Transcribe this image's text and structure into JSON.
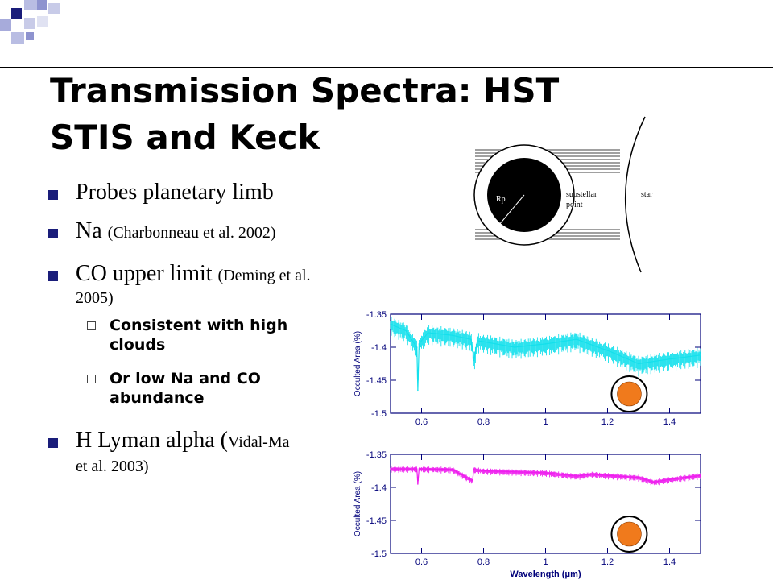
{
  "slide": {
    "title_line1": "Transmission Spectra: HST",
    "title_line2": "STIS and Keck",
    "bullets": [
      {
        "text": "Probes planetary limb",
        "cite": ""
      },
      {
        "text": "Na ",
        "cite": "(Charbonneau et al. 2002)"
      },
      {
        "text": "CO upper limit ",
        "cite": "(Deming et al.",
        "cite2": "2005)"
      },
      {
        "text": "H Lyman alpha (",
        "cite": "Vidal-Ma",
        "cite2": "et al. 2003)"
      }
    ],
    "sub_bullets": [
      {
        "line1": "Consistent with high",
        "line2": "clouds"
      },
      {
        "line1": "Or low Na and CO",
        "line2": "abundance"
      }
    ]
  },
  "diagram": {
    "r_label": "Rp",
    "substellar_label_1": "substellar",
    "substellar_label_2": "point",
    "star_label": "star"
  },
  "chart_data": [
    {
      "type": "line",
      "xlabel": "",
      "ylabel": "Occulted Area (%)",
      "xlim": [
        0.5,
        1.5
      ],
      "ylim": [
        -1.5,
        -1.35
      ],
      "xticks": [
        "0.6",
        "0.8",
        "1",
        "1.2",
        "1.4"
      ],
      "yticks": [
        "-1.35",
        "-1.4",
        "-1.45",
        "-1.5"
      ],
      "series_color": "#14e0ec",
      "marker_color": "#f07a1c",
      "series": [
        {
          "x": [
            0.5,
            0.55,
            0.585,
            0.588,
            0.592,
            0.62,
            0.7,
            0.76,
            0.77,
            0.78,
            0.9,
            1.0,
            1.1,
            1.2,
            1.3,
            1.4,
            1.5
          ],
          "y": [
            -1.365,
            -1.375,
            -1.4,
            -1.465,
            -1.395,
            -1.378,
            -1.382,
            -1.388,
            -1.42,
            -1.39,
            -1.4,
            -1.395,
            -1.388,
            -1.405,
            -1.425,
            -1.418,
            -1.412
          ]
        }
      ]
    },
    {
      "type": "line",
      "xlabel": "Wavelength (μm)",
      "ylabel": "Occulted Area (%)",
      "xlim": [
        0.5,
        1.5
      ],
      "ylim": [
        -1.5,
        -1.35
      ],
      "xticks": [
        "0.6",
        "0.8",
        "1",
        "1.2",
        "1.4"
      ],
      "yticks": [
        "-1.35",
        "-1.4",
        "-1.45",
        "-1.5"
      ],
      "series_color": "#ee1cee",
      "marker_color": "#f07a1c",
      "series": [
        {
          "x": [
            0.5,
            0.585,
            0.588,
            0.592,
            0.7,
            0.765,
            0.768,
            0.8,
            1.0,
            1.1,
            1.15,
            1.2,
            1.3,
            1.35,
            1.4,
            1.5
          ],
          "y": [
            -1.372,
            -1.372,
            -1.395,
            -1.372,
            -1.373,
            -1.39,
            -1.373,
            -1.375,
            -1.378,
            -1.383,
            -1.38,
            -1.382,
            -1.385,
            -1.392,
            -1.388,
            -1.382
          ]
        }
      ]
    }
  ]
}
